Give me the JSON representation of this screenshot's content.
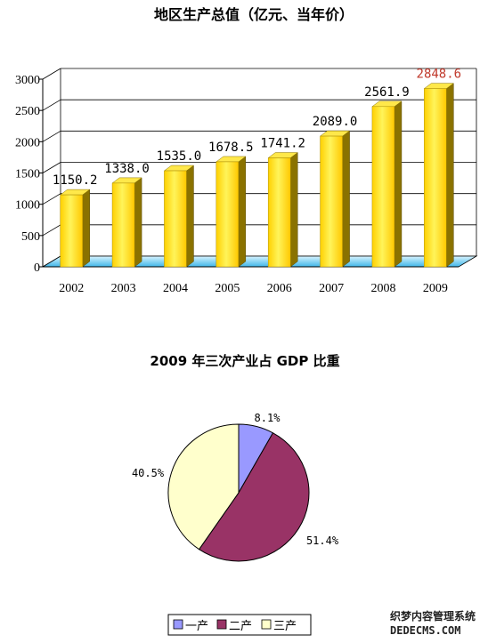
{
  "chart_data": [
    {
      "type": "bar",
      "title": "地区生产总值（亿元、当年价）",
      "categories": [
        "2002",
        "2003",
        "2004",
        "2005",
        "2006",
        "2007",
        "2008",
        "2009"
      ],
      "values": [
        1150.2,
        1338.0,
        1535.0,
        1678.5,
        1741.2,
        2089.0,
        2561.9,
        2848.6
      ],
      "value_labels": [
        "1150.2",
        "1338.0",
        "1535.0",
        "1678.5",
        "1741.2",
        "2089.0",
        "2561.9",
        "2848.6"
      ],
      "highlight_label_color": "#c0392b",
      "highlight_index": 7,
      "ylim": [
        0,
        3000
      ],
      "yticks": [
        0,
        500,
        1000,
        1500,
        2000,
        2500,
        3000
      ],
      "grid": true,
      "style": "3d",
      "bar_color": "#ffd400",
      "floor_color": "#5bc8f0"
    },
    {
      "type": "pie",
      "title": "2009 年三次产业占 GDP 比重",
      "labels": [
        "一产",
        "二产",
        "三产"
      ],
      "values": [
        8.1,
        51.4,
        40.5
      ],
      "value_labels": [
        "8.1%",
        "51.4%",
        "40.5%"
      ],
      "colors": [
        "#9999ff",
        "#993366",
        "#ffffcc"
      ],
      "legend": "bottom"
    }
  ],
  "watermark": {
    "line1": "织梦内容管理系统",
    "line2": "DEDECMS.COM"
  }
}
